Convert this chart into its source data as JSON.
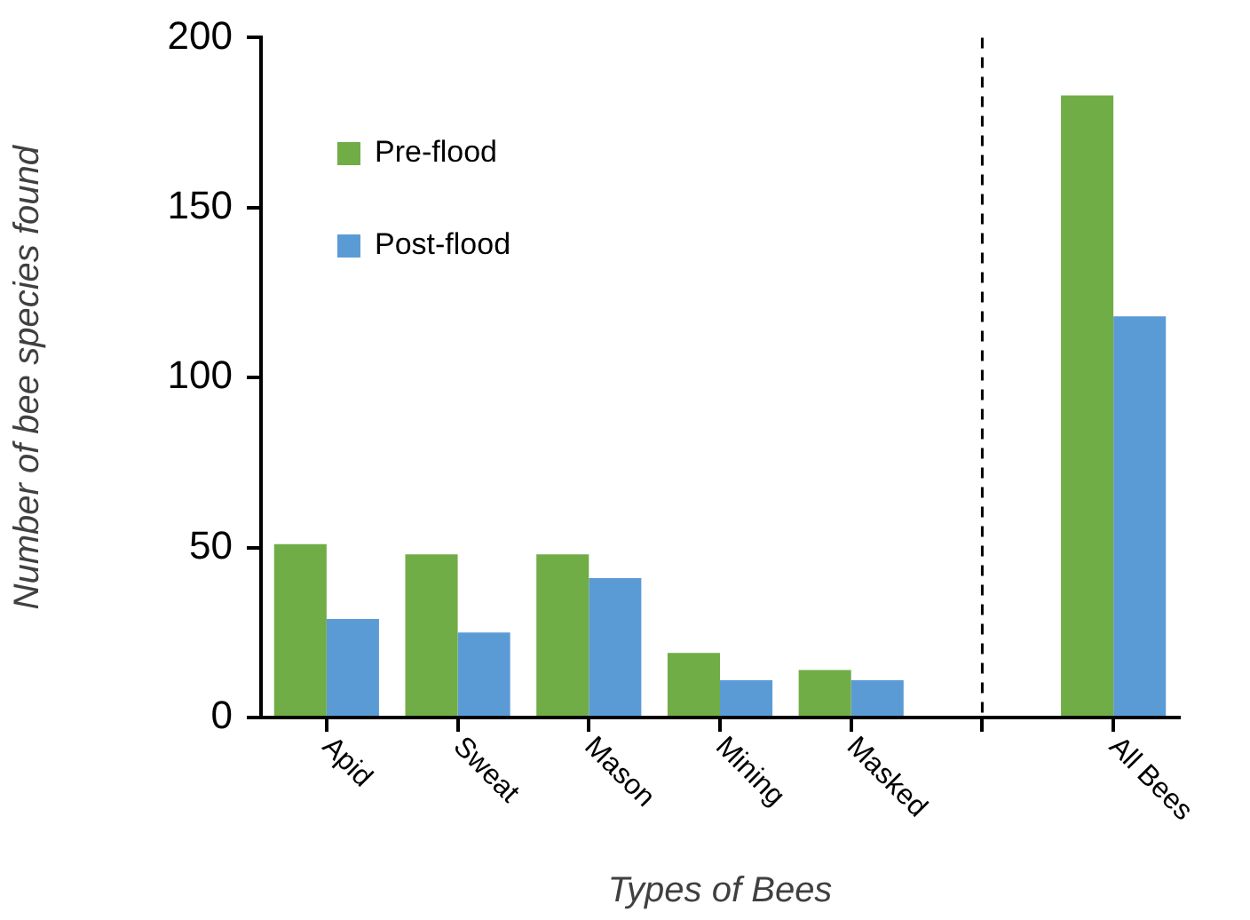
{
  "chart_data": {
    "type": "bar",
    "xlabel": "Types of Bees",
    "ylabel": "Number of bee species found",
    "categories": [
      "Apid",
      "Sweat",
      "Mason",
      "Mining",
      "Masked",
      null,
      "All Bees"
    ],
    "series": [
      {
        "name": "Pre-flood",
        "color": "#70ad47",
        "values": [
          51,
          48,
          48,
          19,
          14,
          null,
          183
        ]
      },
      {
        "name": "Post-flood",
        "color": "#5b9bd5",
        "values": [
          29,
          25,
          41,
          11,
          11,
          null,
          118
        ]
      }
    ],
    "ylim": [
      0,
      200
    ],
    "yticks": [
      0,
      50,
      100,
      150,
      200
    ],
    "legend": "top left"
  }
}
